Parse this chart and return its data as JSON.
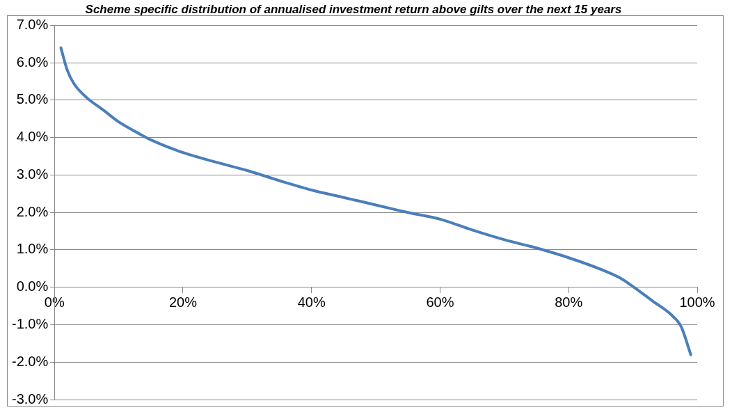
{
  "chart_data": {
    "type": "line",
    "title": "Scheme specific distribution of annualised investment return above gilts over the next 15 years",
    "x": [
      1,
      2,
      3,
      5,
      7.5,
      10,
      12.5,
      15,
      20,
      25,
      30,
      35,
      40,
      45,
      50,
      55,
      60,
      65,
      70,
      75,
      80,
      85,
      88,
      90,
      93,
      96,
      97.5,
      99
    ],
    "series": [
      {
        "color": "#4a7ebb",
        "values": [
          6.4,
          5.8,
          5.45,
          5.07,
          4.75,
          4.42,
          4.17,
          3.94,
          3.6,
          3.35,
          3.12,
          2.85,
          2.6,
          2.4,
          2.2,
          2.0,
          1.82,
          1.53,
          1.27,
          1.05,
          0.79,
          0.48,
          0.25,
          0.02,
          -0.36,
          -0.74,
          -1.05,
          -1.8
        ]
      }
    ],
    "xlim": [
      0,
      100
    ],
    "xticks": [
      {
        "value": 0,
        "label": "0%"
      },
      {
        "value": 20,
        "label": "20%"
      },
      {
        "value": 40,
        "label": "40%"
      },
      {
        "value": 60,
        "label": "60%"
      },
      {
        "value": 80,
        "label": "80%"
      },
      {
        "value": 100,
        "label": "100%"
      }
    ],
    "ylim": [
      -3,
      7
    ],
    "yticks": [
      {
        "value": -3,
        "label": "-3.0%"
      },
      {
        "value": -2,
        "label": "-2.0%"
      },
      {
        "value": -1,
        "label": "-1.0%"
      },
      {
        "value": 0,
        "label": "0.0%"
      },
      {
        "value": 1,
        "label": "1.0%"
      },
      {
        "value": 2,
        "label": "2.0%"
      },
      {
        "value": 3,
        "label": "3.0%"
      },
      {
        "value": 4,
        "label": "4.0%"
      },
      {
        "value": 5,
        "label": "5.0%"
      },
      {
        "value": 6,
        "label": "6.0%"
      },
      {
        "value": 7,
        "label": "7.0%"
      }
    ],
    "grid": "y",
    "legend": false,
    "marker": "none",
    "line_style": "solid"
  }
}
